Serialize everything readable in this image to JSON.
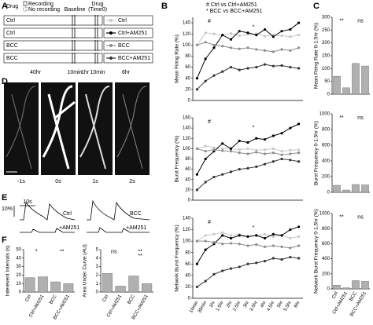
{
  "panel_labels": [
    "A",
    "B",
    "C",
    "D",
    "E",
    "F"
  ],
  "timeline": {
    "drug": "Drug",
    "recording": "Recording",
    "no_recording": "No recording",
    "baseline": "Baseline",
    "drug_time0": [
      "Drug",
      "(Time0)"
    ],
    "rows": [
      "Ctrl",
      "Ctrl",
      "BCC",
      "BCC"
    ],
    "durations": [
      "40hr",
      "10min",
      "1hr",
      "10min",
      "6hr"
    ]
  },
  "image_times": [
    "-1s",
    "0s",
    "1s",
    "2s"
  ],
  "traces": {
    "scale_y": "10%",
    "scale_x": "10s",
    "labels": [
      "Ctrl",
      "BCC",
      "+AM251",
      "+AM251"
    ]
  },
  "legend_notes": [
    "# Ctrl vs Ctrl+AM251",
    "* BCC vs BCC+AM251"
  ],
  "chart_data": [
    {
      "type": "line",
      "y_label": "Mean Firing Rate (%)",
      "categories": [
        null,
        null,
        null,
        null,
        null,
        null,
        null,
        null,
        null,
        null,
        null,
        null,
        null
      ],
      "ylim": [
        0,
        150
      ],
      "yticks": [
        0,
        20,
        40,
        60,
        80,
        100,
        120,
        140
      ],
      "annotations": [
        "#",
        "*"
      ],
      "series": [
        {
          "name": "Ctrl",
          "color": "#c8c8c8",
          "values": [
            100,
            122,
            120,
            118,
            121,
            117,
            119,
            120,
            116,
            118,
            117,
            115,
            118
          ]
        },
        {
          "name": "Ctrl+AM251",
          "color": "#000000",
          "values": [
            40,
            75,
            95,
            118,
            110,
            125,
            122,
            118,
            128,
            115,
            125,
            128,
            140
          ]
        },
        {
          "name": "BCC",
          "color": "#8c8c8c",
          "values": [
            100,
            105,
            100,
            98,
            95,
            93,
            95,
            92,
            90,
            88,
            92,
            90,
            95
          ]
        },
        {
          "name": "BCC+AM251",
          "color": "#333333",
          "values": [
            20,
            35,
            45,
            52,
            60,
            55,
            58,
            60,
            65,
            62,
            63,
            60,
            58
          ]
        }
      ]
    },
    {
      "type": "line",
      "y_label": "Burst Frequency (%)",
      "categories": [
        null,
        null,
        null,
        null,
        null,
        null,
        null,
        null,
        null,
        null,
        null,
        null,
        null
      ],
      "ylim": [
        0,
        160
      ],
      "yticks": [
        0,
        20,
        40,
        60,
        80,
        100,
        120,
        140,
        160
      ],
      "annotations": [
        "#",
        "*"
      ],
      "series": [
        {
          "color": "#c8c8c8",
          "values": [
            100,
            105,
            102,
            100,
            100,
            98,
            100,
            97,
            98,
            100,
            95,
            97,
            98
          ]
        },
        {
          "color": "#000000",
          "values": [
            50,
            80,
            95,
            110,
            100,
            115,
            112,
            120,
            118,
            125,
            130,
            140,
            148
          ]
        },
        {
          "color": "#8c8c8c",
          "values": [
            100,
            95,
            98,
            96,
            95,
            92,
            90,
            93,
            90,
            92,
            88,
            90,
            92
          ]
        },
        {
          "color": "#333333",
          "values": [
            20,
            35,
            45,
            50,
            55,
            60,
            62,
            65,
            70,
            75,
            80,
            78,
            75
          ]
        }
      ]
    },
    {
      "type": "line",
      "y_label": "Network Burst Frequency (%)",
      "categories": [
        "10min",
        "30min",
        "1hr",
        "1.5hr",
        "2hr",
        "2.5hr",
        "3hr",
        "3.5hr",
        "4hr",
        "4.5hr",
        "5hr",
        "5.5hr",
        "6hr"
      ],
      "ylim": [
        0,
        140
      ],
      "yticks": [
        0,
        20,
        40,
        60,
        80,
        100,
        120,
        140
      ],
      "annotations": [
        "#",
        "*"
      ],
      "series": [
        {
          "color": "#c8c8c8",
          "values": [
            100,
            110,
            112,
            115,
            110,
            112,
            108,
            110,
            112,
            108,
            110,
            105,
            108
          ]
        },
        {
          "color": "#000000",
          "values": [
            60,
            85,
            95,
            110,
            105,
            110,
            108,
            110,
            105,
            112,
            110,
            120,
            125
          ]
        },
        {
          "color": "#8c8c8c",
          "values": [
            100,
            100,
            98,
            95,
            96,
            95,
            92,
            94,
            90,
            92,
            90,
            88,
            92
          ]
        },
        {
          "color": "#333333",
          "values": [
            20,
            30,
            42,
            48,
            52,
            55,
            60,
            62,
            65,
            70,
            68,
            72,
            70
          ]
        }
      ]
    },
    {
      "type": "bar",
      "y_label": "Mean Firing Rate 0-1.5hr (%)",
      "categories": [
        null,
        null,
        null,
        null
      ],
      "color": "#b0b0b0",
      "values": [
        70,
        25,
        120,
        110
      ],
      "ylim": [
        0,
        300
      ],
      "yticks": [
        0,
        50,
        100,
        150,
        200,
        250,
        300
      ],
      "annotations": [
        "**",
        "ns"
      ]
    },
    {
      "type": "bar",
      "y_label": "Burst Frequency 0-1.5hr (%)",
      "categories": [
        null,
        null,
        null,
        null
      ],
      "color": "#b0b0b0",
      "values": [
        90,
        30,
        100,
        95
      ],
      "ylim": [
        0,
        1000
      ],
      "yticks": [
        0,
        200,
        400,
        600,
        800,
        1000
      ],
      "annotations": [
        "**",
        "ns"
      ]
    },
    {
      "type": "bar",
      "y_label": "Network Burst Frequency 0-1.5hr (%)",
      "categories": [
        "Ctrl",
        "Ctrl+AM251",
        "BCC",
        "BCC+AM251"
      ],
      "color": "#b0b0b0",
      "values": [
        50,
        15,
        110,
        100
      ],
      "ylim": [
        0,
        1000
      ],
      "yticks": [
        0,
        200,
        400,
        600,
        800,
        1000
      ],
      "annotations": [
        "**",
        "ns"
      ]
    },
    {
      "type": "bar",
      "y_label": "Interevent Intervals (s)",
      "categories": [
        "Ctrl",
        "Ctrl+AM251",
        "BCC",
        "BCC+AM251"
      ],
      "color": "#b0b0b0",
      "values": [
        17,
        18,
        12,
        10
      ],
      "ylim": [
        0,
        50
      ],
      "yticks": [
        0,
        10,
        20,
        30,
        40,
        50
      ],
      "annotations": [
        "*",
        "**"
      ]
    },
    {
      "type": "bar",
      "y_label": "Area Under Curve (AU)",
      "categories": [
        "Ctrl",
        "Ctrl+AM251",
        "BCC",
        "BCC+AM251"
      ],
      "color": "#b0b0b0",
      "values": [
        2.2,
        0.7,
        1.9,
        1.0
      ],
      "ylim": [
        0,
        5
      ],
      "yticks": [
        0,
        1,
        2,
        3,
        4,
        5
      ],
      "annotations": [
        "ns",
        "**",
        "**"
      ]
    }
  ]
}
